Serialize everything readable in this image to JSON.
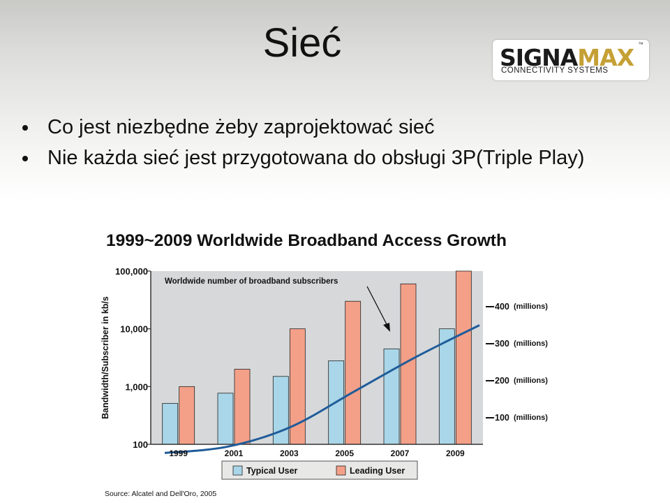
{
  "slide": {
    "title": "Sieć",
    "bullets": [
      "Co jest niezbędne żeby zaprojektować sieć",
      "Nie każda sieć jest przygotowana do obsługi  3P(Triple Play)"
    ]
  },
  "logo": {
    "main_part1": "SIGNA",
    "main_part2": "MAX",
    "sub": "CONNECTIVITY SYSTEMS",
    "tm": "™"
  },
  "chart_data": {
    "type": "bar",
    "title": "1999~2009 Worldwide Broadband Access Growth",
    "ylabel": "Bandwidth/Subscriber in kb/s",
    "yscale": "log",
    "ylim": [
      100,
      100000
    ],
    "y_ticks": [
      "100",
      "1,000",
      "10,000",
      "100,000"
    ],
    "y_tick_values": [
      100,
      1000,
      10000,
      100000
    ],
    "categories": [
      "1999",
      "2001",
      "2003",
      "2005",
      "2007",
      "2009"
    ],
    "series": [
      {
        "name": "Typical User",
        "color": "#a9d6e8",
        "values": [
          512,
          768,
          1500,
          2800,
          4500,
          10000
        ]
      },
      {
        "name": "Leading User",
        "color": "#f4a088",
        "values": [
          1000,
          2000,
          10000,
          30000,
          60000,
          100000
        ]
      }
    ],
    "line_series": {
      "name": "Worldwide number of broadband subscribers",
      "axis": "right",
      "unit": "millions",
      "color": "#1f5c9a",
      "x": [
        "1999",
        "2001",
        "2003",
        "2005",
        "2007",
        "2009"
      ],
      "values": [
        5,
        22,
        75,
        170,
        265,
        350
      ]
    },
    "y2_ticks": [
      {
        "value": 100,
        "label": "100",
        "unit": "(millions)"
      },
      {
        "value": 200,
        "label": "200",
        "unit": "(millions)"
      },
      {
        "value": 300,
        "label": "300",
        "unit": "(millions)"
      },
      {
        "value": 400,
        "label": "400",
        "unit": "(millions)"
      }
    ],
    "annotation": "Worldwide number of broadband subscribers",
    "legend": [
      "Typical User",
      "Leading User"
    ],
    "legend_position": "bottom",
    "source": "Source: Alcatel and Dell'Oro, 2005",
    "grid": false
  }
}
